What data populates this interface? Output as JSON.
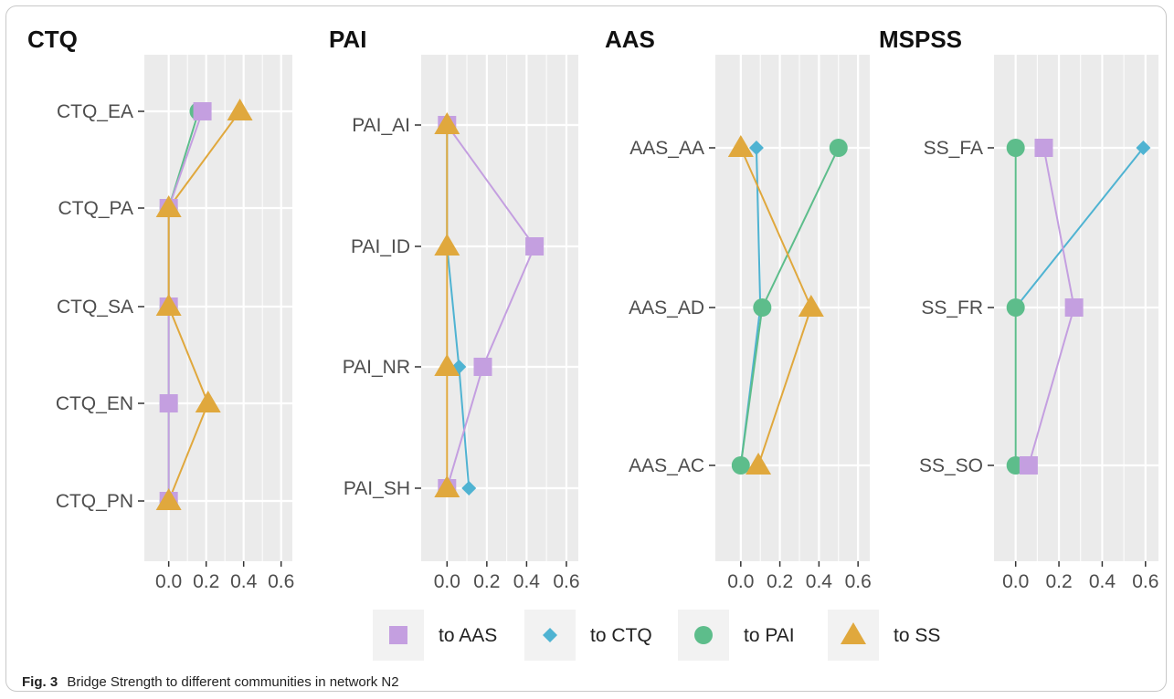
{
  "figure": {
    "caption_label": "Fig. 3",
    "caption_text": "Bridge Strength to different communities in network N2"
  },
  "legend": [
    {
      "name": "to AAS",
      "color": "#c49fe0",
      "shape": "square"
    },
    {
      "name": "to CTQ",
      "color": "#4fb3d2",
      "shape": "diamond"
    },
    {
      "name": "to PAI",
      "color": "#5dbd8b",
      "shape": "circle"
    },
    {
      "name": "to SS",
      "color": "#e0a83d",
      "shape": "triangle"
    }
  ],
  "chart_data": [
    {
      "type": "line",
      "title": "CTQ",
      "categories": [
        "CTQ_EA",
        "CTQ_PA",
        "CTQ_SA",
        "CTQ_EN",
        "CTQ_PN"
      ],
      "xlim": [
        -0.13,
        0.66
      ],
      "xticks": [
        0.0,
        0.2,
        0.4,
        0.6
      ],
      "xticklabels": [
        "0.0",
        "0.2",
        "0.4",
        "0.6"
      ],
      "series": [
        {
          "name": "to CTQ",
          "values": [
            null,
            null,
            null,
            null,
            null
          ]
        },
        {
          "name": "to PAI",
          "values": [
            0.16,
            0.0,
            0.0,
            0.0,
            0.0
          ]
        },
        {
          "name": "to AAS",
          "values": [
            0.18,
            0.0,
            0.0,
            0.0,
            0.0
          ]
        },
        {
          "name": "to SS",
          "values": [
            0.38,
            0.0,
            0.0,
            0.21,
            0.0
          ]
        }
      ]
    },
    {
      "type": "line",
      "title": "PAI",
      "categories": [
        "PAI_AI",
        "PAI_ID",
        "PAI_NR",
        "PAI_SH"
      ],
      "xlim": [
        -0.13,
        0.66
      ],
      "xticks": [
        0.0,
        0.2,
        0.4,
        0.6
      ],
      "xticklabels": [
        "0.0",
        "0.2",
        "0.4",
        "0.6"
      ],
      "series": [
        {
          "name": "to CTQ",
          "values": [
            0.0,
            0.0,
            0.06,
            0.11
          ]
        },
        {
          "name": "to PAI",
          "values": [
            null,
            null,
            null,
            null
          ]
        },
        {
          "name": "to AAS",
          "values": [
            0.0,
            0.44,
            0.18,
            0.0
          ]
        },
        {
          "name": "to SS",
          "values": [
            0.0,
            0.0,
            0.0,
            0.0
          ]
        }
      ]
    },
    {
      "type": "line",
      "title": "AAS",
      "categories": [
        "AAS_AA",
        "AAS_AD",
        "AAS_AC"
      ],
      "xlim": [
        -0.13,
        0.66
      ],
      "xticks": [
        0.0,
        0.2,
        0.4,
        0.6
      ],
      "xticklabels": [
        "0.0",
        "0.2",
        "0.4",
        "0.6"
      ],
      "series": [
        {
          "name": "to CTQ",
          "values": [
            0.08,
            0.1,
            0.0
          ]
        },
        {
          "name": "to PAI",
          "values": [
            0.5,
            0.11,
            0.0
          ]
        },
        {
          "name": "to AAS",
          "values": [
            null,
            null,
            null
          ]
        },
        {
          "name": "to SS",
          "values": [
            0.0,
            0.36,
            0.09
          ]
        }
      ]
    },
    {
      "type": "line",
      "title": "MSPSS",
      "categories": [
        "SS_FA",
        "SS_FR",
        "SS_SO"
      ],
      "xlim": [
        -0.1,
        0.66
      ],
      "xticks": [
        0.0,
        0.2,
        0.4,
        0.6
      ],
      "xticklabels": [
        "0.0",
        "0.2",
        "0.4",
        "0.6"
      ],
      "series": [
        {
          "name": "to CTQ",
          "values": [
            0.59,
            0.0,
            null
          ]
        },
        {
          "name": "to PAI",
          "values": [
            0.0,
            0.0,
            0.0
          ]
        },
        {
          "name": "to AAS",
          "values": [
            0.13,
            0.27,
            0.06
          ]
        },
        {
          "name": "to SS",
          "values": [
            null,
            null,
            null
          ]
        }
      ]
    }
  ]
}
